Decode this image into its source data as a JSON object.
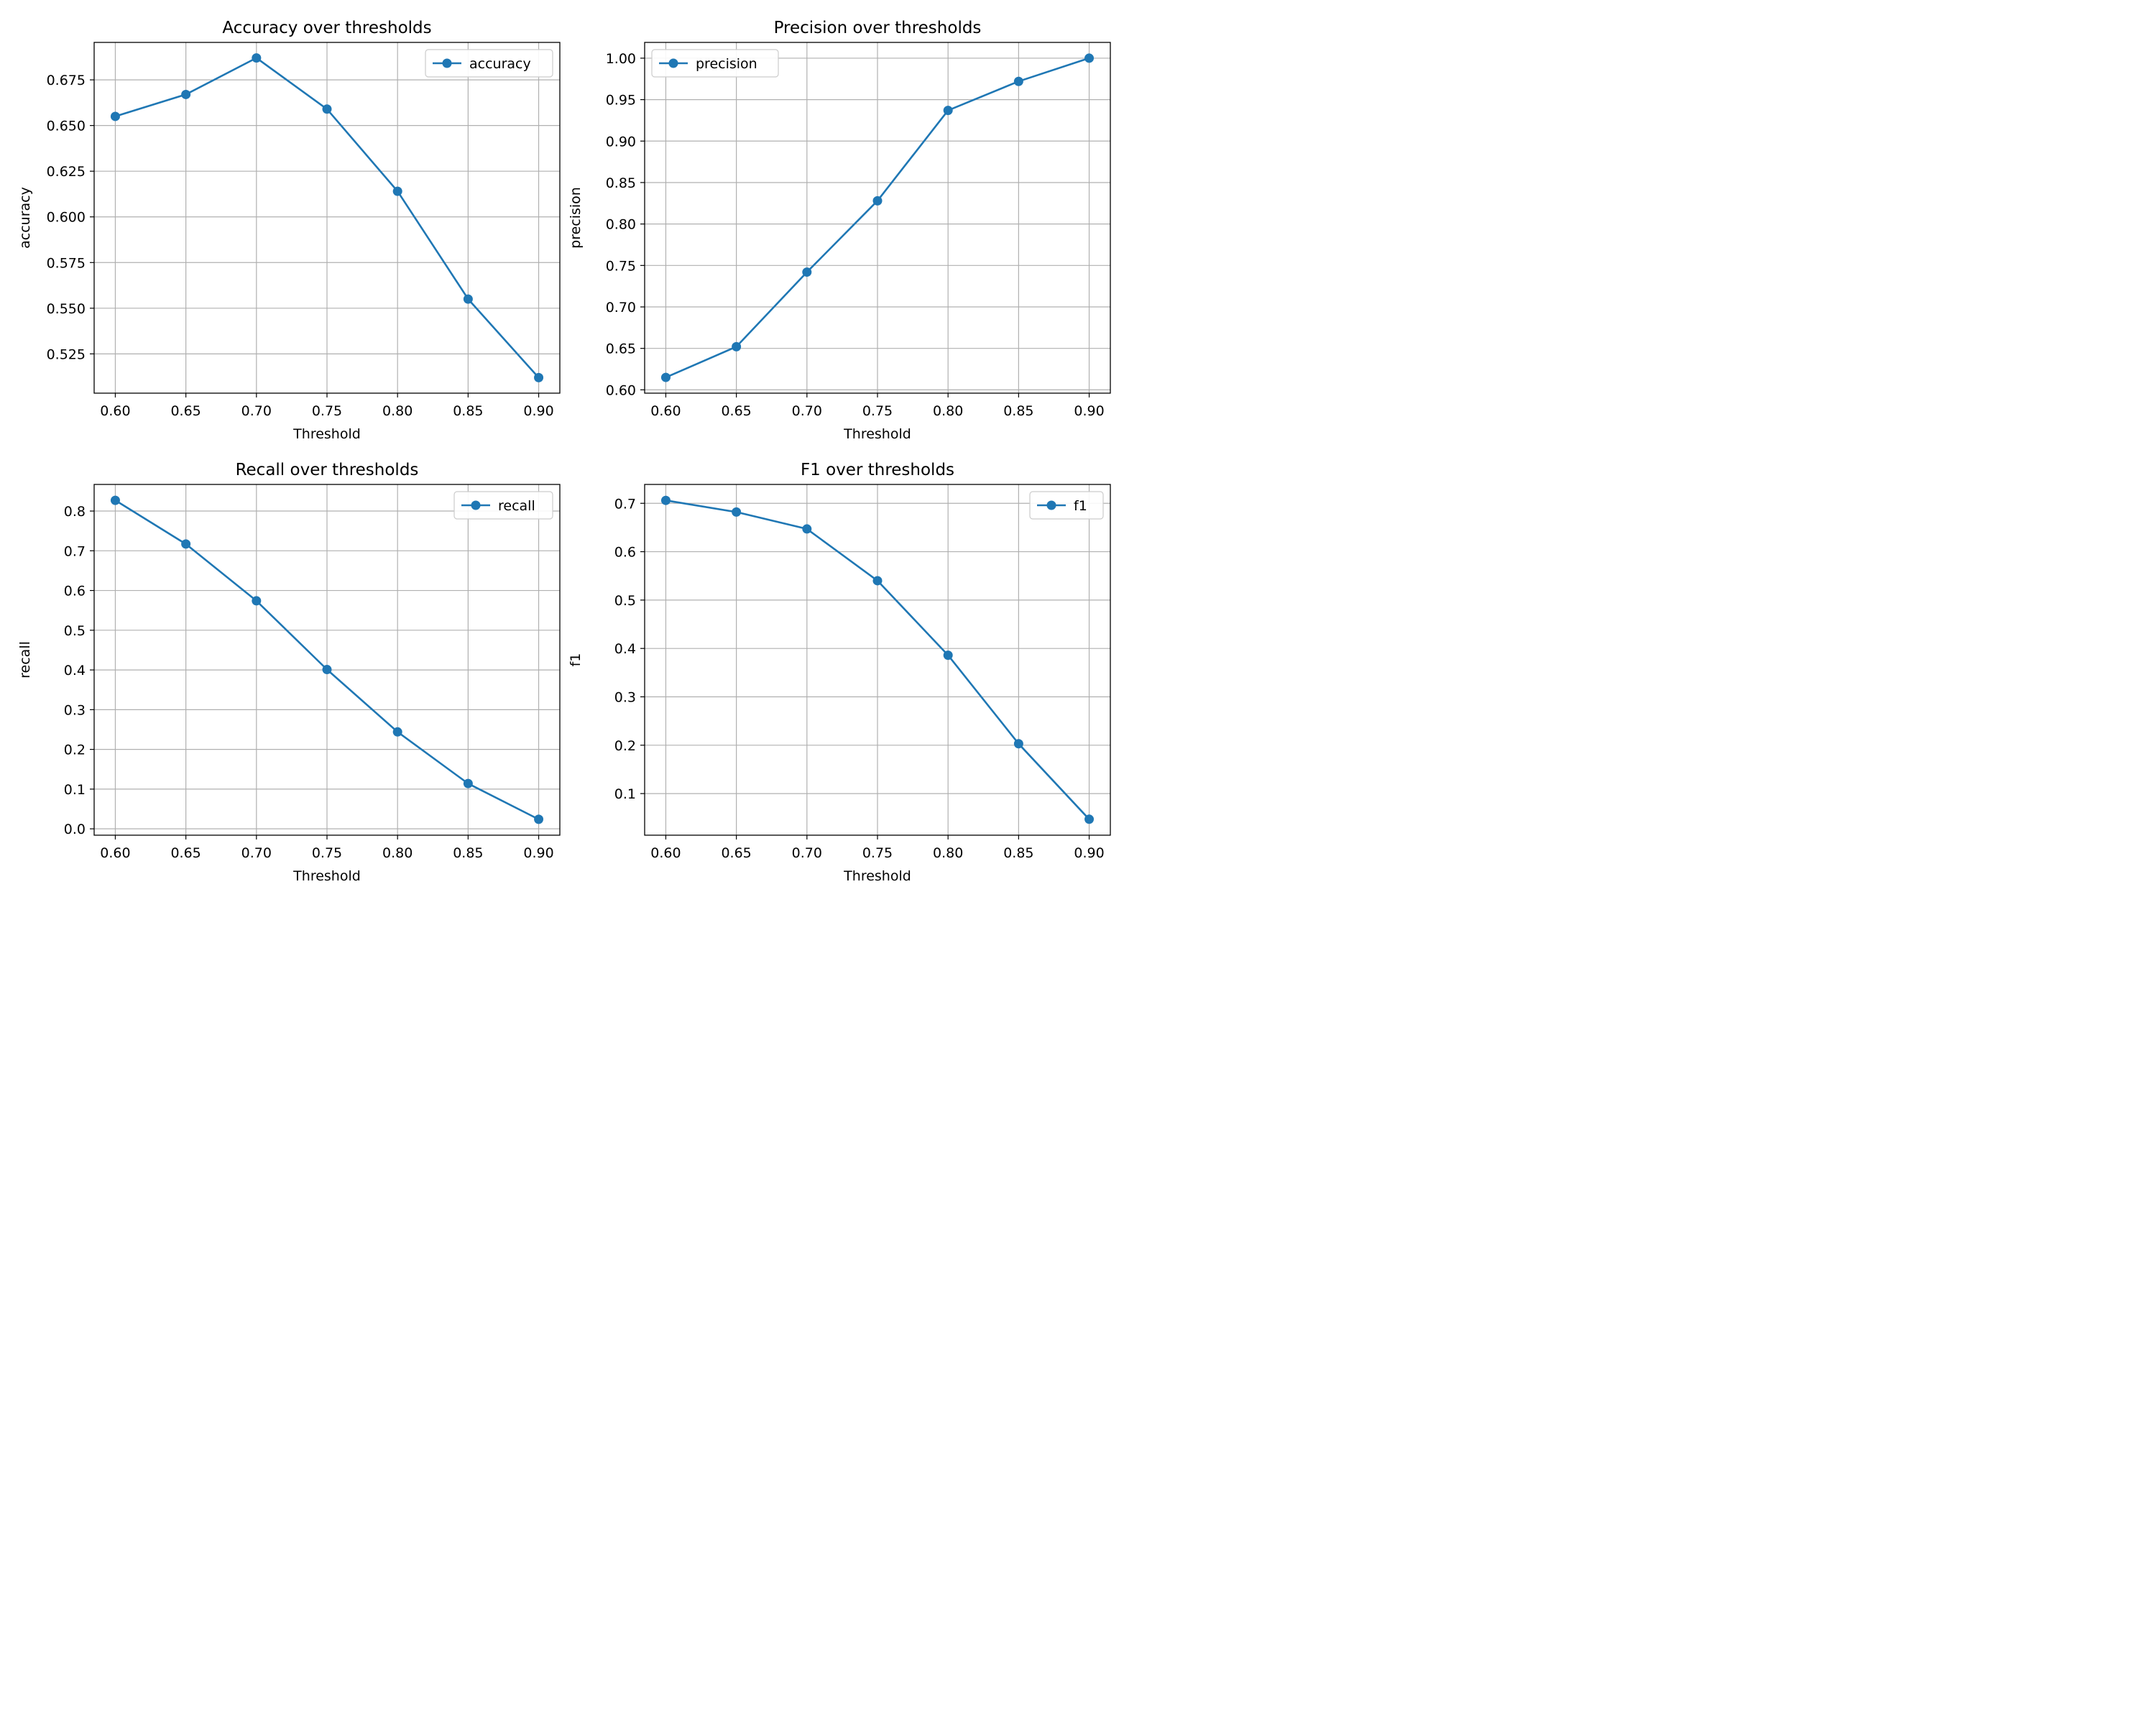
{
  "chart_data": [
    {
      "type": "line",
      "title": "Accuracy over thresholds",
      "xlabel": "Threshold",
      "ylabel": "accuracy",
      "x": [
        0.6,
        0.65,
        0.7,
        0.75,
        0.8,
        0.85,
        0.9
      ],
      "series": [
        {
          "name": "accuracy",
          "values": [
            0.655,
            0.667,
            0.687,
            0.659,
            0.614,
            0.555,
            0.512
          ]
        }
      ],
      "xlim": [
        0.585,
        0.915
      ],
      "ylim": [
        0.5035,
        0.6955
      ],
      "xticks": [
        "0.60",
        "0.65",
        "0.70",
        "0.75",
        "0.80",
        "0.85",
        "0.90"
      ],
      "yticks": [
        {
          "v": 0.525,
          "label": "0.525"
        },
        {
          "v": 0.55,
          "label": "0.550"
        },
        {
          "v": 0.575,
          "label": "0.575"
        },
        {
          "v": 0.6,
          "label": "0.600"
        },
        {
          "v": 0.625,
          "label": "0.625"
        },
        {
          "v": 0.65,
          "label": "0.650"
        },
        {
          "v": 0.675,
          "label": "0.675"
        }
      ],
      "legend_position": "top-right",
      "grid": true
    },
    {
      "type": "line",
      "title": "Precision over thresholds",
      "xlabel": "Threshold",
      "ylabel": "precision",
      "x": [
        0.6,
        0.65,
        0.7,
        0.75,
        0.8,
        0.85,
        0.9
      ],
      "series": [
        {
          "name": "precision",
          "values": [
            0.615,
            0.652,
            0.742,
            0.828,
            0.937,
            0.972,
            1.0
          ]
        }
      ],
      "xlim": [
        0.585,
        0.915
      ],
      "ylim": [
        0.596,
        1.019
      ],
      "xticks": [
        "0.60",
        "0.65",
        "0.70",
        "0.75",
        "0.80",
        "0.85",
        "0.90"
      ],
      "yticks": [
        {
          "v": 0.6,
          "label": "0.60"
        },
        {
          "v": 0.65,
          "label": "0.65"
        },
        {
          "v": 0.7,
          "label": "0.70"
        },
        {
          "v": 0.75,
          "label": "0.75"
        },
        {
          "v": 0.8,
          "label": "0.80"
        },
        {
          "v": 0.85,
          "label": "0.85"
        },
        {
          "v": 0.9,
          "label": "0.90"
        },
        {
          "v": 0.95,
          "label": "0.95"
        },
        {
          "v": 1.0,
          "label": "1.00"
        }
      ],
      "legend_position": "top-left",
      "grid": true
    },
    {
      "type": "line",
      "title": "Recall over thresholds",
      "xlabel": "Threshold",
      "ylabel": "recall",
      "x": [
        0.6,
        0.65,
        0.7,
        0.75,
        0.8,
        0.85,
        0.9
      ],
      "series": [
        {
          "name": "recall",
          "values": [
            0.827,
            0.717,
            0.574,
            0.401,
            0.244,
            0.114,
            0.024
          ]
        }
      ],
      "xlim": [
        0.585,
        0.915
      ],
      "ylim": [
        -0.016,
        0.867
      ],
      "xticks": [
        "0.60",
        "0.65",
        "0.70",
        "0.75",
        "0.80",
        "0.85",
        "0.90"
      ],
      "yticks": [
        {
          "v": 0.0,
          "label": "0.0"
        },
        {
          "v": 0.1,
          "label": "0.1"
        },
        {
          "v": 0.2,
          "label": "0.2"
        },
        {
          "v": 0.3,
          "label": "0.3"
        },
        {
          "v": 0.4,
          "label": "0.4"
        },
        {
          "v": 0.5,
          "label": "0.5"
        },
        {
          "v": 0.6,
          "label": "0.6"
        },
        {
          "v": 0.7,
          "label": "0.7"
        },
        {
          "v": 0.8,
          "label": "0.8"
        }
      ],
      "legend_position": "top-right",
      "grid": true
    },
    {
      "type": "line",
      "title": "F1 over thresholds",
      "xlabel": "Threshold",
      "ylabel": "f1",
      "x": [
        0.6,
        0.65,
        0.7,
        0.75,
        0.8,
        0.85,
        0.9
      ],
      "series": [
        {
          "name": "f1",
          "values": [
            0.706,
            0.682,
            0.647,
            0.54,
            0.386,
            0.203,
            0.047
          ]
        }
      ],
      "xlim": [
        0.585,
        0.915
      ],
      "ylim": [
        0.014,
        0.739
      ],
      "xticks": [
        "0.60",
        "0.65",
        "0.70",
        "0.75",
        "0.80",
        "0.85",
        "0.90"
      ],
      "yticks": [
        {
          "v": 0.1,
          "label": "0.1"
        },
        {
          "v": 0.2,
          "label": "0.2"
        },
        {
          "v": 0.3,
          "label": "0.3"
        },
        {
          "v": 0.4,
          "label": "0.4"
        },
        {
          "v": 0.5,
          "label": "0.5"
        },
        {
          "v": 0.6,
          "label": "0.6"
        },
        {
          "v": 0.7,
          "label": "0.7"
        }
      ],
      "legend_position": "top-right",
      "grid": true
    }
  ],
  "colors": {
    "series": "#1f77b4",
    "grid": "#b0b0b0",
    "axes": "#000000",
    "legend_border": "#cccccc",
    "background": "#ffffff"
  }
}
